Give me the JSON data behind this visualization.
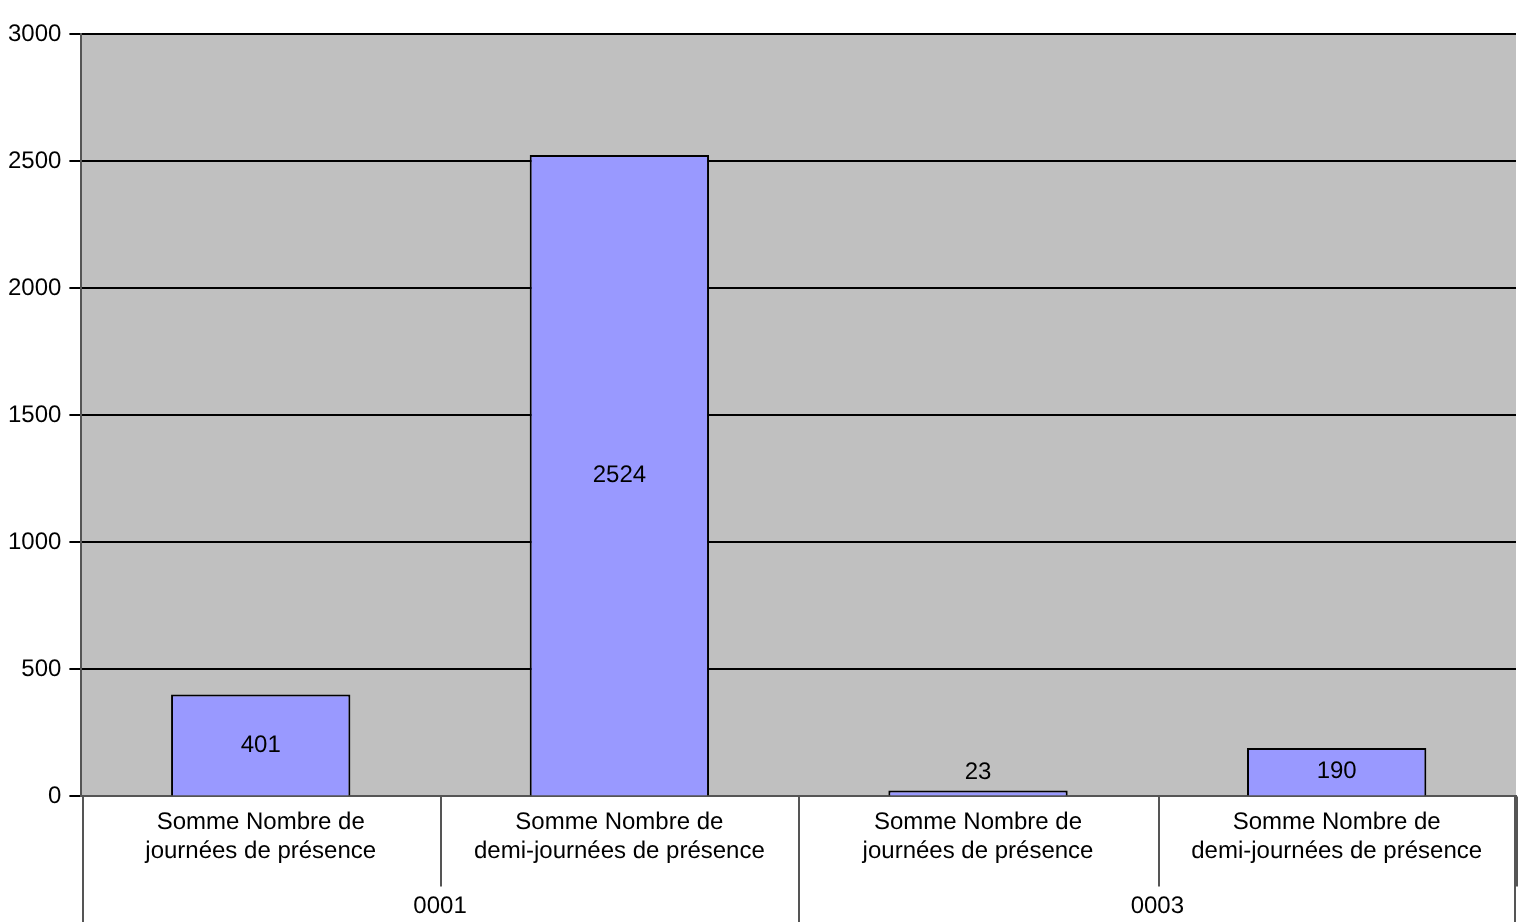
{
  "chart_data": {
    "type": "bar",
    "categories": [
      "Somme Nombre de journées de présence",
      "Somme Nombre de demi-journées de présence",
      "Somme Nombre de journées de présence",
      "Somme Nombre de demi-journées de présence"
    ],
    "values": [
      401,
      2524,
      23,
      190
    ],
    "color": "#9999ff",
    "ylim": [
      0,
      3000
    ],
    "yticks": [
      0,
      500,
      1000,
      1500,
      2000,
      2500,
      3000
    ],
    "grid": "y",
    "legend": false,
    "data_labels": true,
    "annotations": [
      "0001",
      "0003"
    ]
  }
}
